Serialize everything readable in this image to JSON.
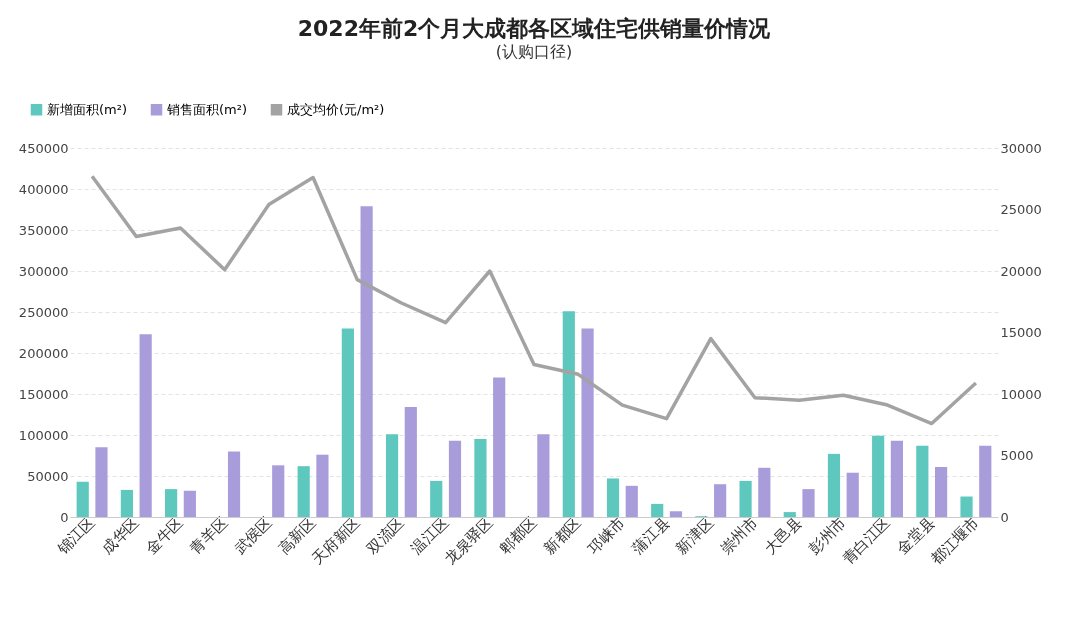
{
  "chart_data": {
    "type": "bar",
    "title": "2022年前2个月大成都各区域住宅供销量价情况",
    "subtitle": "(认购口径)",
    "categories": [
      "锦江区",
      "成华区",
      "金牛区",
      "青羊区",
      "武侯区",
      "高新区",
      "天府新区",
      "双流区",
      "温江区",
      "龙泉驿区",
      "郫都区",
      "新都区",
      "邛崃市",
      "蒲江县",
      "新津区",
      "崇州市",
      "大邑县",
      "彭州市",
      "青白江区",
      "金堂县",
      "都江堰市"
    ],
    "series": [
      {
        "name": "新增面积(m²)",
        "color": "#5ec8bf",
        "values": [
          43000,
          33000,
          34000,
          0,
          0,
          62000,
          230000,
          101000,
          44000,
          95000,
          0,
          251000,
          47000,
          16000,
          1000,
          44000,
          6000,
          77000,
          99000,
          87000,
          25000
        ]
      },
      {
        "name": "销售面积(m²)",
        "color": "#a99cdb",
        "values": [
          85000,
          223000,
          32000,
          80000,
          63000,
          76000,
          379000,
          134000,
          93000,
          170000,
          101000,
          230000,
          38000,
          7000,
          40000,
          60000,
          34000,
          54000,
          93000,
          61000,
          87000
        ]
      },
      {
        "name": "成交均价(元/m²)",
        "type": "line",
        "axis": "y2",
        "color": "#a3a3a3",
        "values": [
          27700,
          22800,
          23500,
          20100,
          25400,
          27600,
          19300,
          17400,
          15800,
          20000,
          12400,
          11600,
          9100,
          8000,
          14500,
          9700,
          9500,
          9900,
          9100,
          7600,
          10900
        ]
      }
    ],
    "ylim": [
      0,
      450000
    ],
    "yticks": [
      0,
      50000,
      100000,
      150000,
      200000,
      250000,
      300000,
      350000,
      400000,
      450000
    ],
    "y2lim": [
      0,
      30000
    ],
    "y2ticks": [
      0,
      5000,
      10000,
      15000,
      20000,
      25000,
      30000
    ],
    "grid": "y",
    "legend": "top left",
    "marker": "none",
    "line_style": "solid"
  }
}
